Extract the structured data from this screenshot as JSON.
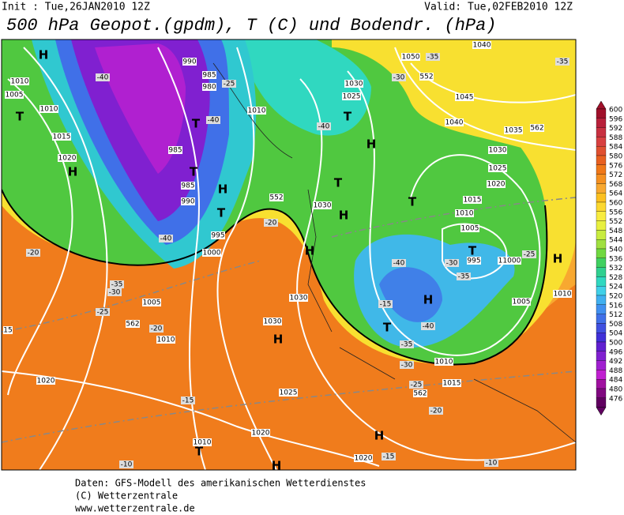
{
  "header": {
    "init": "Init : Tue,26JAN2010 12Z",
    "valid": "Valid: Tue,02FEB2010 12Z",
    "title": "500 hPa Geopot.(gpdm), T (C) und Bodendr. (hPa)"
  },
  "colorbar": {
    "levels": [
      600,
      596,
      592,
      588,
      584,
      580,
      576,
      572,
      568,
      564,
      560,
      556,
      552,
      548,
      544,
      540,
      536,
      532,
      528,
      524,
      520,
      516,
      512,
      508,
      504,
      500,
      496,
      492,
      488,
      484,
      480,
      476
    ],
    "colors": [
      "#a0102a",
      "#b8203a",
      "#c83040",
      "#d84040",
      "#e05030",
      "#e86020",
      "#f07818",
      "#f59020",
      "#f8a830",
      "#fcc020",
      "#fcd830",
      "#f8ec40",
      "#e8f040",
      "#c8ec40",
      "#a0e040",
      "#70d840",
      "#40d060",
      "#30d090",
      "#30d8c0",
      "#40d0e8",
      "#40b0f0",
      "#4090f0",
      "#4070e8",
      "#4050e0",
      "#4030d8",
      "#6020d0",
      "#8020d0",
      "#a020d0",
      "#c020d0",
      "#a010a0",
      "#800880",
      "#600060"
    ]
  },
  "map": {
    "labels": [
      "H",
      "1010",
      "1005",
      "T",
      "1010",
      "1015",
      "1020",
      "H",
      "-40",
      "990",
      "985",
      "980",
      "-25",
      "T",
      "-40",
      "985",
      "T",
      "985",
      "990",
      "H",
      "T",
      "995",
      "1000",
      "-40",
      "-20",
      "-35",
      "-30",
      "1005",
      "-25",
      "562",
      "-20",
      "1010",
      "15",
      "1020",
      "-15",
      "1025",
      "1030",
      "H",
      "-20",
      "552",
      "1030",
      "H",
      "1010",
      "-40",
      "1030",
      "1025",
      "T",
      "H",
      "T",
      "1030",
      "H",
      "-30",
      "552",
      "1050",
      "-35",
      "1040",
      "-35",
      "1045",
      "1040",
      "1035",
      "562",
      "1030",
      "1025",
      "1020",
      "1015",
      "1010",
      "T",
      "1005",
      "-40",
      "-30",
      "T",
      "995",
      "11000",
      "-25",
      "H",
      "-35",
      "H",
      "1005",
      "1010",
      "-15",
      "T",
      "-40",
      "-35",
      "-30",
      "1010",
      "1015",
      "-25",
      "562",
      "-20",
      "H",
      "1020",
      "1010",
      "T",
      "-10",
      "1020",
      "-15",
      "-10",
      "H"
    ]
  },
  "footer": {
    "lines": [
      "Daten: GFS-Modell des amerikanischen Wetterdienstes",
      "(C) Wetterzentrale",
      "www.wetterzentrale.de"
    ]
  }
}
